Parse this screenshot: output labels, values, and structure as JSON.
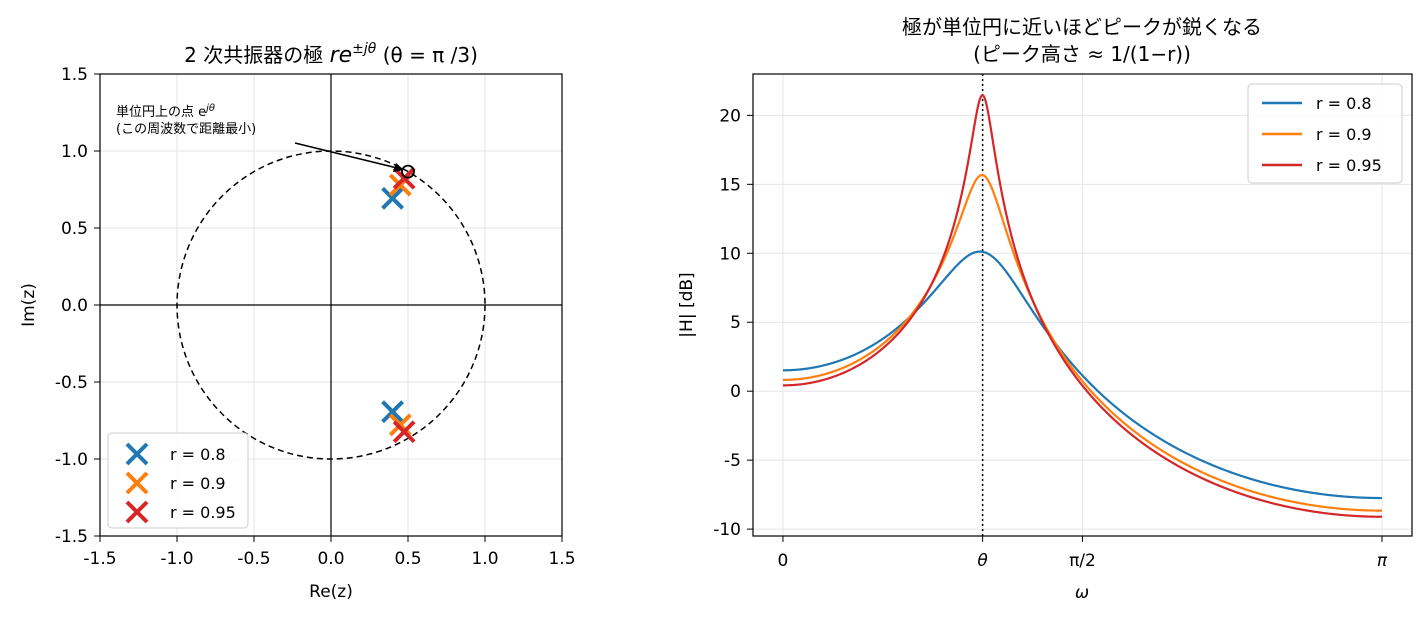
{
  "chart_data": [
    {
      "type": "scatter",
      "title_main": "2 次共振器の極 ",
      "title_math": "re",
      "title_sup": "±jθ",
      "title_tail": " (θ = π /3)",
      "xlabel": "Re(z)",
      "ylabel": "Im(z)",
      "xlim": [
        -1.5,
        1.5
      ],
      "ylim": [
        -1.5,
        1.5
      ],
      "xticks": [
        -1.5,
        -1.0,
        -0.5,
        0.0,
        0.5,
        1.0,
        1.5
      ],
      "xtick_labels": [
        "-1.5",
        "-1.0",
        "-0.5",
        "0.0",
        "0.5",
        "1.0",
        "1.5"
      ],
      "yticks": [
        -1.5,
        -1.0,
        -0.5,
        0.0,
        0.5,
        1.0,
        1.5
      ],
      "ytick_labels": [
        "-1.5",
        "-1.0",
        "-0.5",
        "0.0",
        "0.5",
        "1.0",
        "1.5"
      ],
      "grid": true,
      "unit_circle": true,
      "legend_position": "lower-left",
      "series": [
        {
          "name": "r = 0.8",
          "color": "#1f77b4",
          "points": [
            [
              0.4,
              0.693
            ],
            [
              0.4,
              -0.693
            ]
          ]
        },
        {
          "name": "r = 0.9",
          "color": "#ff7f0e",
          "points": [
            [
              0.45,
              0.779
            ],
            [
              0.45,
              -0.779
            ]
          ]
        },
        {
          "name": "r = 0.95",
          "color": "#d62728",
          "points": [
            [
              0.475,
              0.823
            ],
            [
              0.475,
              -0.823
            ]
          ]
        }
      ],
      "marker_point": [
        0.5,
        0.866
      ],
      "annotation": {
        "line1": "単位円上の点 e",
        "line1_sup": "jθ",
        "line2": "(この周波数で距離最小)"
      }
    },
    {
      "type": "line",
      "title": "極が単位円に近いほどピークが鋭くなる",
      "subtitle": "(ピーク高さ ≈ 1/(1−r))",
      "xlabel": "ω",
      "ylabel": "|H| [dB]",
      "xlim": [
        -0.157,
        3.299
      ],
      "ylim": [
        -10.5,
        23.0
      ],
      "xticks": [
        0,
        1.0472,
        1.5708,
        3.1416
      ],
      "xtick_labels": [
        "0",
        "θ",
        "π/2",
        "π"
      ],
      "yticks": [
        -10,
        -5,
        0,
        5,
        10,
        15,
        20
      ],
      "ytick_labels": [
        "-10",
        "-5",
        "0",
        "5",
        "10",
        "15",
        "20"
      ],
      "grid": true,
      "vline_at": 1.0472,
      "legend_position": "top-right",
      "series": [
        {
          "name": "r = 0.8",
          "color": "#1f77b4",
          "r": 0.8
        },
        {
          "name": "r = 0.9",
          "color": "#ff7f0e",
          "r": 0.9
        },
        {
          "name": "r = 0.95",
          "color": "#d62728",
          "r": 0.95
        }
      ]
    }
  ]
}
